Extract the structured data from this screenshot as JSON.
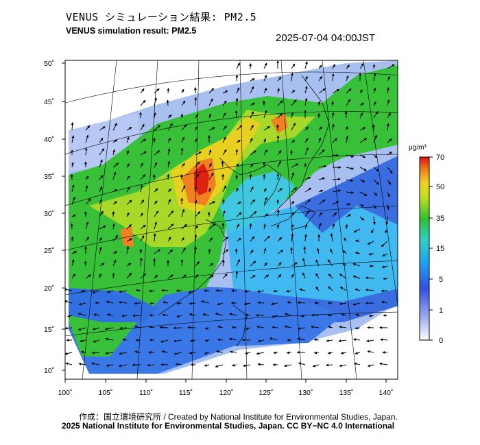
{
  "title_jp": "VENUS シミュレーション結果: PM2.5",
  "title_en": "VENUS simulation result: PM2.5",
  "datetime": "2025-07-04 04:00JST",
  "lat_labels": [
    "50˚",
    "45˚",
    "40˚",
    "35˚",
    "30˚",
    "25˚",
    "20˚",
    "15˚",
    "10˚"
  ],
  "lon_labels": [
    "100˚",
    "105˚",
    "110˚",
    "115˚",
    "120˚",
    "125˚",
    "130˚",
    "135˚",
    "140˚"
  ],
  "colorbar": {
    "unit": "μg/m³",
    "ticks": [
      "70",
      "50",
      "35",
      "15",
      "5",
      "1",
      "0"
    ]
  },
  "credit_line1": "作成：国立環境研究所 / Created by National Institute for Environmental Studies, Japan.",
  "credit_line2": "2025 National Institute for Environmental Studies, Japan. CC BY−NC 4.0 International",
  "colors": {
    "high_red": "#e02010",
    "orange": "#f08020",
    "yellow": "#e8d020",
    "green": "#40c030",
    "cyan": "#30c8e0",
    "blue": "#3070e0",
    "light_blue": "#a0b8f0",
    "white": "#ffffff"
  }
}
